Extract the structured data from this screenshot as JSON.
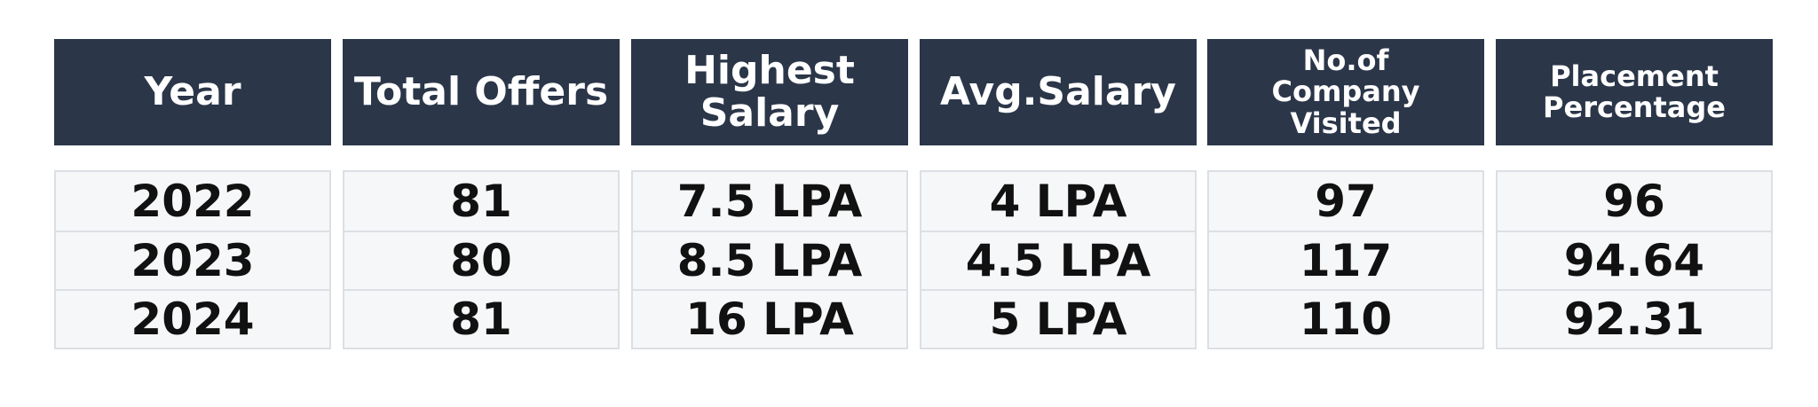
{
  "table": {
    "columns": [
      {
        "header": "Year",
        "values": [
          "2022",
          "2023",
          "2024"
        ]
      },
      {
        "header": "Total Offers",
        "values": [
          "81",
          "80",
          "81"
        ]
      },
      {
        "header": "Highest\nSalary",
        "values": [
          "7.5 LPA",
          "8.5 LPA",
          "16 LPA"
        ]
      },
      {
        "header": "Avg.Salary",
        "values": [
          "4 LPA",
          "4.5 LPA",
          "5 LPA"
        ]
      },
      {
        "header": "No.of\nCompany Visited",
        "values": [
          "97",
          "117",
          "110"
        ]
      },
      {
        "header": "Placement\nPercentage",
        "values": [
          "96",
          "94.64",
          "92.31"
        ]
      }
    ]
  },
  "colors": {
    "header_bg": "#2b3649",
    "header_text": "#ffffff",
    "cell_bg": "#f6f7f9",
    "cell_border": "#dcdfe3",
    "cell_text": "#111111"
  }
}
